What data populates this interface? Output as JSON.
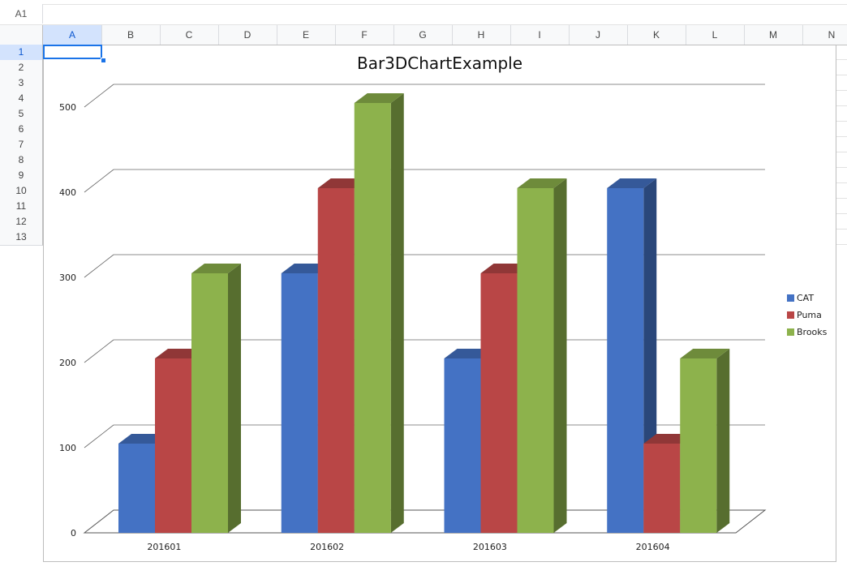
{
  "namebox": {
    "cell": "A1"
  },
  "columns": [
    "A",
    "B",
    "C",
    "D",
    "E",
    "F",
    "G",
    "H",
    "I",
    "J",
    "K",
    "L",
    "M",
    "N"
  ],
  "active_column": "A",
  "rows": [
    "1",
    "2",
    "3",
    "4",
    "5",
    "6",
    "7",
    "8",
    "9",
    "10",
    "11",
    "12",
    "13"
  ],
  "active_row": "1",
  "colors": {
    "CAT": "#4472c4",
    "Puma": "#b94646",
    "Brooks": "#8db24c",
    "selection": "#1a73e8"
  },
  "chart_data": {
    "type": "bar",
    "style": "3d-clustered",
    "title": "Bar3DChartExample",
    "categories": [
      "201601",
      "201602",
      "201603",
      "201604"
    ],
    "series": [
      {
        "name": "CAT",
        "values": [
          100,
          300,
          200,
          400
        ]
      },
      {
        "name": "Puma",
        "values": [
          200,
          400,
          300,
          100
        ]
      },
      {
        "name": "Brooks",
        "values": [
          300,
          500,
          400,
          200
        ]
      }
    ],
    "ylim": [
      0,
      500
    ],
    "yticks": [
      0,
      100,
      200,
      300,
      400,
      500
    ],
    "ytick_labels": [
      "0",
      "100",
      "200",
      "300",
      "400",
      "500"
    ],
    "grid": true,
    "legend": "right"
  }
}
